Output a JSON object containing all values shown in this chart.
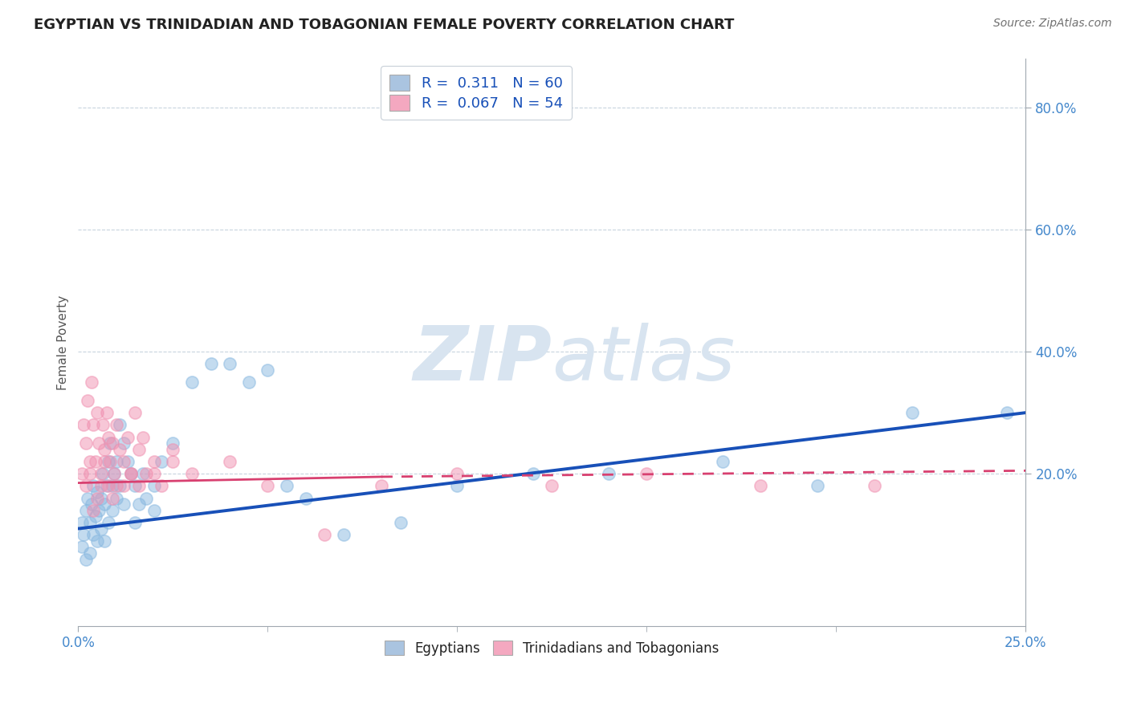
{
  "title": "EGYPTIAN VS TRINIDADIAN AND TOBAGONIAN FEMALE POVERTY CORRELATION CHART",
  "source": "Source: ZipAtlas.com",
  "ylabel": "Female Poverty",
  "xlim": [
    0.0,
    25.0
  ],
  "ylim": [
    -5.0,
    88.0
  ],
  "yticks_right": [
    20.0,
    40.0,
    60.0,
    80.0
  ],
  "legend_color1": "#aac4e0",
  "legend_color2": "#f4a8c0",
  "dot_color_egyptian": "#88b8e0",
  "dot_color_trinidadian": "#f090b0",
  "trend_color_egyptian": "#1850b8",
  "trend_color_trinidadian": "#d84070",
  "watermark_color": "#d8e4f0",
  "grid_color": "#c8d4de",
  "background_color": "#ffffff",
  "egyptian_x": [
    0.1,
    0.1,
    0.15,
    0.2,
    0.2,
    0.25,
    0.3,
    0.3,
    0.35,
    0.4,
    0.4,
    0.45,
    0.5,
    0.5,
    0.55,
    0.6,
    0.6,
    0.65,
    0.7,
    0.7,
    0.75,
    0.8,
    0.8,
    0.85,
    0.9,
    0.9,
    0.95,
    1.0,
    1.0,
    1.1,
    1.1,
    1.2,
    1.2,
    1.3,
    1.4,
    1.5,
    1.5,
    1.6,
    1.7,
    1.8,
    2.0,
    2.0,
    2.2,
    2.5,
    3.0,
    3.5,
    4.0,
    4.5,
    5.0,
    5.5,
    6.0,
    7.0,
    8.5,
    10.0,
    12.0,
    14.0,
    17.0,
    19.5,
    22.0,
    24.5
  ],
  "egyptian_y": [
    12.0,
    8.0,
    10.0,
    14.0,
    6.0,
    16.0,
    12.0,
    7.0,
    15.0,
    10.0,
    18.0,
    13.0,
    17.0,
    9.0,
    14.0,
    16.0,
    11.0,
    20.0,
    15.0,
    9.0,
    18.0,
    22.0,
    12.0,
    25.0,
    18.0,
    14.0,
    20.0,
    22.0,
    16.0,
    28.0,
    18.0,
    25.0,
    15.0,
    22.0,
    20.0,
    18.0,
    12.0,
    15.0,
    20.0,
    16.0,
    18.0,
    14.0,
    22.0,
    25.0,
    35.0,
    38.0,
    38.0,
    35.0,
    37.0,
    18.0,
    16.0,
    10.0,
    12.0,
    18.0,
    20.0,
    20.0,
    22.0,
    18.0,
    30.0,
    30.0
  ],
  "trinidadian_x": [
    0.1,
    0.15,
    0.2,
    0.25,
    0.3,
    0.35,
    0.4,
    0.45,
    0.5,
    0.55,
    0.6,
    0.65,
    0.7,
    0.75,
    0.8,
    0.85,
    0.9,
    0.95,
    1.0,
    1.1,
    1.2,
    1.3,
    1.4,
    1.5,
    1.6,
    1.7,
    1.8,
    2.0,
    2.2,
    2.5,
    3.0,
    4.0,
    5.0,
    6.5,
    8.0,
    10.0,
    12.5,
    15.0,
    18.0,
    21.0,
    0.2,
    0.3,
    0.4,
    0.5,
    0.6,
    0.7,
    0.8,
    0.9,
    1.0,
    1.2,
    1.4,
    1.6,
    2.0,
    2.5
  ],
  "trinidadian_y": [
    20.0,
    28.0,
    25.0,
    32.0,
    22.0,
    35.0,
    28.0,
    22.0,
    30.0,
    25.0,
    20.0,
    28.0,
    24.0,
    30.0,
    26.0,
    22.0,
    25.0,
    20.0,
    28.0,
    24.0,
    22.0,
    26.0,
    20.0,
    30.0,
    24.0,
    26.0,
    20.0,
    22.0,
    18.0,
    24.0,
    20.0,
    22.0,
    18.0,
    10.0,
    18.0,
    20.0,
    18.0,
    20.0,
    18.0,
    18.0,
    18.0,
    20.0,
    14.0,
    16.0,
    18.0,
    22.0,
    18.0,
    16.0,
    18.0,
    18.0,
    20.0,
    18.0,
    20.0,
    22.0
  ],
  "trend_egyptian_x0": 0.0,
  "trend_egyptian_y0": 11.0,
  "trend_egyptian_x1": 25.0,
  "trend_egyptian_y1": 30.0,
  "trend_trini_x0": 0.0,
  "trend_trini_y0": 18.5,
  "trend_trini_x1": 8.0,
  "trend_trini_y1": 19.5,
  "trend_trini_dash_x0": 8.0,
  "trend_trini_dash_y0": 19.5,
  "trend_trini_dash_x1": 25.0,
  "trend_trini_dash_y1": 20.5
}
